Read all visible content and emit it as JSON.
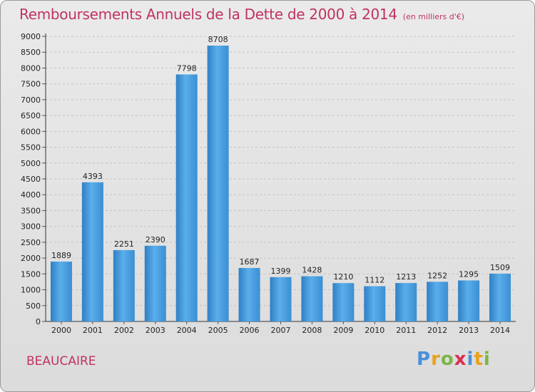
{
  "header": {
    "title": "Remboursements Annuels de la Dette de 2000 à 2014",
    "unit": "(en milliers d'€)"
  },
  "footer": {
    "city": "BEAUCAIRE",
    "brand_letters": [
      "P",
      "r",
      "o",
      "x",
      "i",
      "t",
      "i"
    ],
    "brand_colors": [
      "#4a90d9",
      "#e8a21c",
      "#7ab648",
      "#d9304f",
      "#4a90d9",
      "#e8a21c",
      "#7ab648"
    ]
  },
  "chart_data": {
    "type": "bar",
    "title": "Remboursements Annuels de la Dette de 2000 à 2014",
    "categories": [
      "2000",
      "2001",
      "2002",
      "2003",
      "2004",
      "2005",
      "2006",
      "2007",
      "2008",
      "2009",
      "2010",
      "2011",
      "2012",
      "2013",
      "2014"
    ],
    "values": [
      1889,
      4393,
      2251,
      2390,
      7798,
      8708,
      1687,
      1399,
      1428,
      1210,
      1112,
      1213,
      1252,
      1295,
      1509
    ],
    "yticks": [
      0,
      500,
      1000,
      1500,
      2000,
      2500,
      3000,
      3500,
      4000,
      4500,
      5000,
      5500,
      6000,
      6500,
      7000,
      7500,
      8000,
      8500,
      9000
    ],
    "ylim": [
      0,
      9000
    ],
    "grid": true,
    "bar_color": "#3f93d6"
  }
}
